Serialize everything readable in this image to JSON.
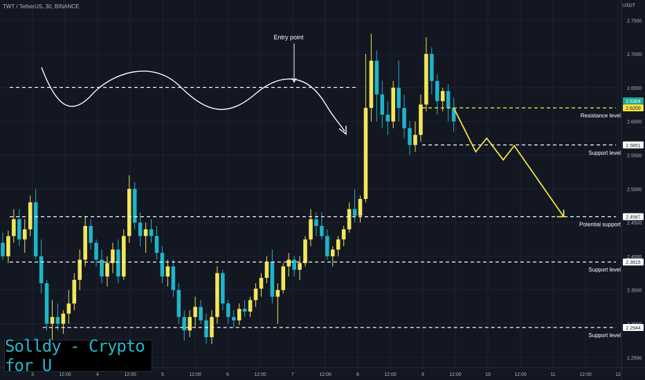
{
  "header": {
    "title": "TWT / TetherUS, 30, BINANCE",
    "unit": "USDT"
  },
  "watermark": "Solldy - Crypto for U",
  "colors": {
    "background": "#131722",
    "up": "#f2e65a",
    "down": "#1fb4c9",
    "grid": "#1f2330",
    "dash": "#ffffff",
    "projection": "#f5e542",
    "axis_text": "#b2b5be"
  },
  "chart_data": {
    "type": "candlestick",
    "title": "TWT / TetherUS, 30, BINANCE",
    "y_unit": "USDT",
    "ylim": [
      2.235,
      2.78
    ],
    "y_ticks": [
      2.25,
      2.3,
      2.35,
      2.4,
      2.45,
      2.5,
      2.55,
      2.6,
      2.65,
      2.7,
      2.75
    ],
    "y_tick_labels": [
      "2.2500",
      "2.3000",
      "2.3500",
      "2.4000",
      "2.4500",
      "2.5000",
      "2.5500",
      "2.6000",
      "2.6500",
      "2.7000",
      "2.7500"
    ],
    "x_ticks": [
      "3",
      "12:00",
      "4",
      "12:00",
      "5",
      "12:00",
      "6",
      "12:00",
      "7",
      "12:00",
      "8",
      "12:00",
      "9",
      "12:00",
      "10",
      "12:00",
      "11",
      "12:00",
      "12"
    ],
    "price_markers": [
      {
        "value": 2.6304,
        "label": "2.6304",
        "bg": "#22ab94",
        "fg": "#ffffff"
      },
      {
        "value": 2.62,
        "label": "2.6200",
        "bg": "#f5e542",
        "fg": "#131722"
      },
      {
        "value": 2.5651,
        "label": "2.5651",
        "bg": "#ffffff",
        "fg": "#131722"
      },
      {
        "value": 2.4587,
        "label": "2.4587",
        "bg": "#ffffff",
        "fg": "#131722"
      },
      {
        "value": 2.3915,
        "label": "2.3915",
        "bg": "#ffffff",
        "fg": "#131722"
      },
      {
        "value": 2.2944,
        "label": "2.2944",
        "bg": "#ffffff",
        "fg": "#131722"
      }
    ],
    "levels": [
      {
        "value": 2.6504,
        "x_from_bar": 0,
        "x_to_bar": 65,
        "color": "#ffffff",
        "label": ""
      },
      {
        "value": 2.62,
        "x_from_bar": 75,
        "x_to_bar": 112,
        "color": "#f5e542",
        "label": "Resistance level"
      },
      {
        "value": 2.5651,
        "x_from_bar": 75,
        "x_to_bar": 112,
        "color": "#ffffff",
        "label": "Support level"
      },
      {
        "value": 2.4587,
        "x_from_bar": 0,
        "x_to_bar": 112,
        "color": "#ffffff",
        "label": "Potential support"
      },
      {
        "value": 2.3915,
        "x_from_bar": 0,
        "x_to_bar": 112,
        "color": "#ffffff",
        "label": "Support level"
      },
      {
        "value": 2.2944,
        "x_from_bar": 6,
        "x_to_bar": 112,
        "color": "#ffffff",
        "label": "Support level"
      }
    ],
    "annotations": [
      {
        "text": "Entry point",
        "bar": 53,
        "value": 2.655
      }
    ],
    "candles_ohlc": [
      [
        2.42,
        2.435,
        2.395,
        2.4
      ],
      [
        2.4,
        2.438,
        2.39,
        2.43
      ],
      [
        2.43,
        2.47,
        2.42,
        2.455
      ],
      [
        2.455,
        2.47,
        2.415,
        2.425
      ],
      [
        2.425,
        2.455,
        2.405,
        2.44
      ],
      [
        2.44,
        2.49,
        2.43,
        2.48
      ],
      [
        2.48,
        2.5,
        2.395,
        2.4
      ],
      [
        2.4,
        2.425,
        2.345,
        2.36
      ],
      [
        2.36,
        2.365,
        2.29,
        2.3
      ],
      [
        2.3,
        2.335,
        2.27,
        2.31
      ],
      [
        2.31,
        2.33,
        2.29,
        2.3
      ],
      [
        2.3,
        2.32,
        2.285,
        2.315
      ],
      [
        2.315,
        2.35,
        2.3,
        2.33
      ],
      [
        2.33,
        2.375,
        2.32,
        2.365
      ],
      [
        2.365,
        2.41,
        2.35,
        2.395
      ],
      [
        2.395,
        2.46,
        2.385,
        2.445
      ],
      [
        2.445,
        2.455,
        2.41,
        2.42
      ],
      [
        2.42,
        2.425,
        2.385,
        2.395
      ],
      [
        2.395,
        2.41,
        2.36,
        2.37
      ],
      [
        2.37,
        2.4,
        2.355,
        2.39
      ],
      [
        2.39,
        2.42,
        2.375,
        2.41
      ],
      [
        2.41,
        2.425,
        2.36,
        2.37
      ],
      [
        2.37,
        2.44,
        2.365,
        2.43
      ],
      [
        2.43,
        2.52,
        2.42,
        2.5
      ],
      [
        2.5,
        2.51,
        2.44,
        2.45
      ],
      [
        2.45,
        2.465,
        2.415,
        2.43
      ],
      [
        2.43,
        2.45,
        2.405,
        2.44
      ],
      [
        2.44,
        2.455,
        2.42,
        2.43
      ],
      [
        2.43,
        2.445,
        2.395,
        2.405
      ],
      [
        2.405,
        2.415,
        2.36,
        2.37
      ],
      [
        2.37,
        2.395,
        2.355,
        2.385
      ],
      [
        2.385,
        2.395,
        2.34,
        2.35
      ],
      [
        2.35,
        2.36,
        2.3,
        2.31
      ],
      [
        2.31,
        2.32,
        2.275,
        2.29
      ],
      [
        2.29,
        2.32,
        2.28,
        2.31
      ],
      [
        2.31,
        2.34,
        2.295,
        2.325
      ],
      [
        2.325,
        2.335,
        2.3,
        2.305
      ],
      [
        2.305,
        2.315,
        2.27,
        2.28
      ],
      [
        2.28,
        2.32,
        2.27,
        2.31
      ],
      [
        2.31,
        2.385,
        2.3,
        2.375
      ],
      [
        2.375,
        2.38,
        2.32,
        2.33
      ],
      [
        2.33,
        2.335,
        2.3,
        2.31
      ],
      [
        2.31,
        2.32,
        2.295,
        2.305
      ],
      [
        2.305,
        2.33,
        2.298,
        2.322
      ],
      [
        2.322,
        2.335,
        2.31,
        2.318
      ],
      [
        2.318,
        2.34,
        2.31,
        2.335
      ],
      [
        2.335,
        2.36,
        2.325,
        2.352
      ],
      [
        2.352,
        2.375,
        2.34,
        2.368
      ],
      [
        2.368,
        2.4,
        2.36,
        2.392
      ],
      [
        2.392,
        2.41,
        2.33,
        2.34
      ],
      [
        2.34,
        2.36,
        2.3,
        2.35
      ],
      [
        2.35,
        2.39,
        2.345,
        2.385
      ],
      [
        2.385,
        2.405,
        2.37,
        2.395
      ],
      [
        2.395,
        2.4,
        2.37,
        2.38
      ],
      [
        2.38,
        2.4,
        2.365,
        2.39
      ],
      [
        2.39,
        2.43,
        2.385,
        2.425
      ],
      [
        2.425,
        2.47,
        2.415,
        2.455
      ],
      [
        2.455,
        2.465,
        2.43,
        2.445
      ],
      [
        2.445,
        2.465,
        2.425,
        2.43
      ],
      [
        2.43,
        2.44,
        2.395,
        2.4
      ],
      [
        2.4,
        2.415,
        2.385,
        2.41
      ],
      [
        2.41,
        2.43,
        2.4,
        2.425
      ],
      [
        2.425,
        2.445,
        2.415,
        2.44
      ],
      [
        2.44,
        2.48,
        2.435,
        2.47
      ],
      [
        2.47,
        2.5,
        2.45,
        2.46
      ],
      [
        2.46,
        2.49,
        2.45,
        2.485
      ],
      [
        2.485,
        2.7,
        2.48,
        2.62
      ],
      [
        2.62,
        2.73,
        2.6,
        2.69
      ],
      [
        2.69,
        2.705,
        2.6,
        2.64
      ],
      [
        2.64,
        2.66,
        2.59,
        2.61
      ],
      [
        2.61,
        2.63,
        2.58,
        2.6
      ],
      [
        2.6,
        2.66,
        2.59,
        2.65
      ],
      [
        2.65,
        2.69,
        2.6,
        2.62
      ],
      [
        2.62,
        2.64,
        2.575,
        2.59
      ],
      [
        2.59,
        2.6,
        2.55,
        2.565
      ],
      [
        2.565,
        2.6,
        2.555,
        2.58
      ],
      [
        2.58,
        2.64,
        2.57,
        2.625
      ],
      [
        2.625,
        2.725,
        2.615,
        2.7
      ],
      [
        2.7,
        2.71,
        2.64,
        2.66
      ],
      [
        2.66,
        2.67,
        2.61,
        2.63
      ],
      [
        2.63,
        2.65,
        2.615,
        2.645
      ],
      [
        2.645,
        2.655,
        2.6,
        2.62
      ],
      [
        2.62,
        2.635,
        2.585,
        2.6
      ]
    ],
    "projection": {
      "color": "#f5e542",
      "values": [
        2.62,
        2.555,
        2.575,
        2.543,
        2.564,
        2.4587
      ],
      "bars": [
        82,
        86,
        88,
        91,
        93,
        102
      ]
    }
  },
  "axis_labels": {
    "resistance": "Resistance level",
    "support_upper": "Support level",
    "potential": "Potential support",
    "support_mid": "Support level",
    "support_low": "Support level"
  }
}
